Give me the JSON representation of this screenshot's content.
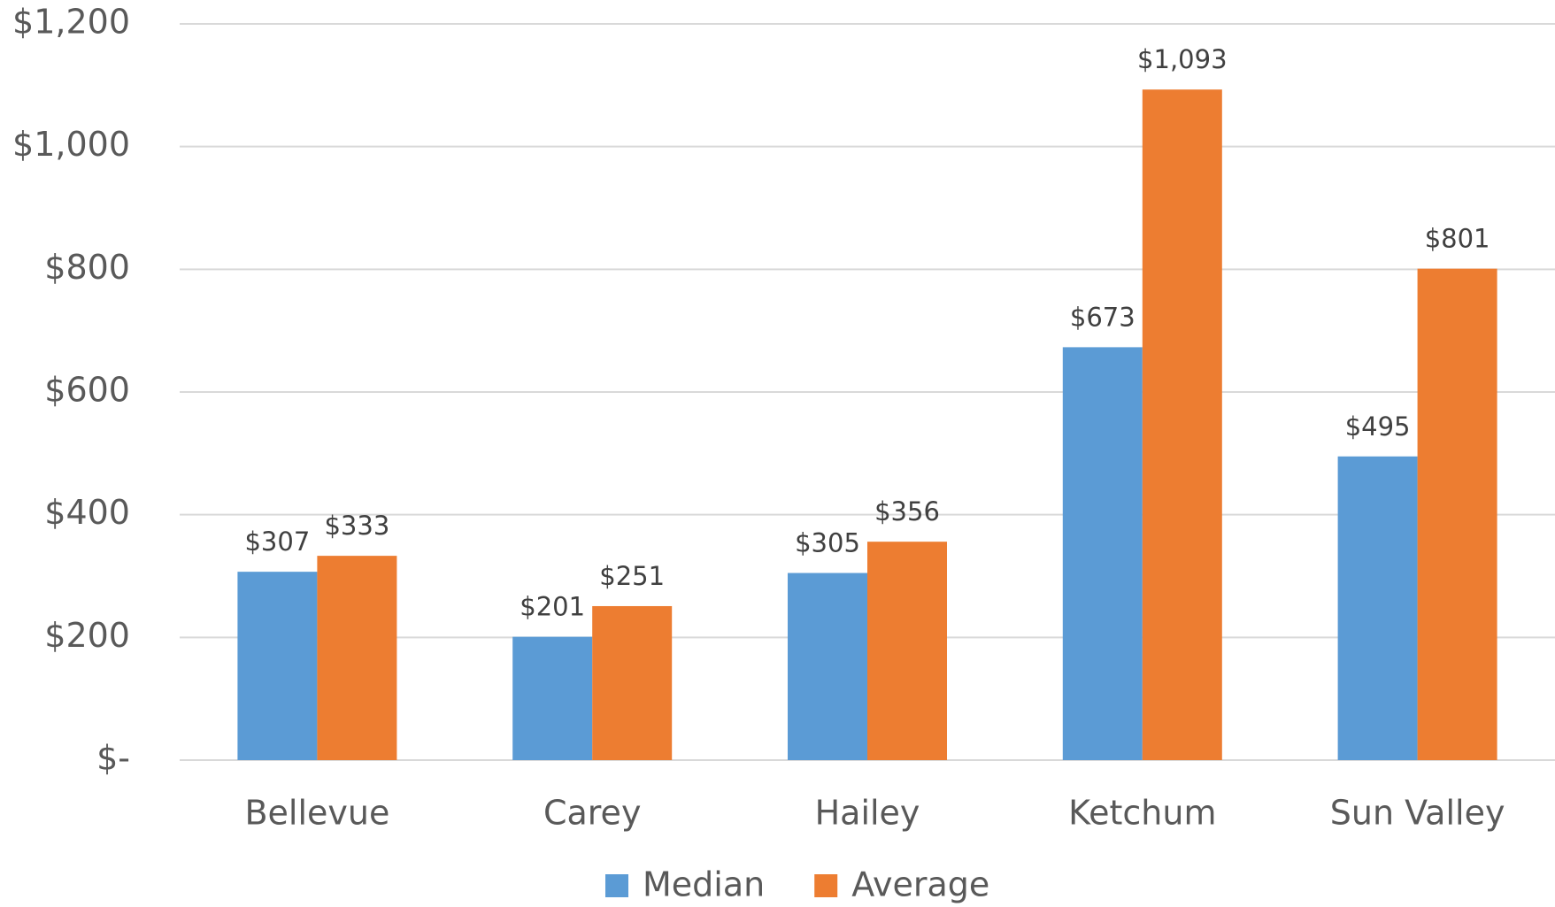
{
  "chart_data": {
    "type": "bar",
    "categories": [
      "Bellevue",
      "Carey",
      "Hailey",
      "Ketchum",
      "Sun Valley"
    ],
    "series": [
      {
        "name": "Median",
        "color": "#5b9bd5",
        "values": [
          307,
          201,
          305,
          673,
          495
        ],
        "value_labels": [
          "$307",
          "$201",
          "$305",
          "$673",
          "$495"
        ]
      },
      {
        "name": "Average",
        "color": "#ed7d31",
        "values": [
          333,
          251,
          356,
          1093,
          801
        ],
        "value_labels": [
          "$333",
          "$251",
          "$356",
          "$1,093",
          "$801"
        ]
      }
    ],
    "ylim": [
      0,
      1200
    ],
    "yticks": [
      {
        "value": 0,
        "label": "$-"
      },
      {
        "value": 200,
        "label": "$200"
      },
      {
        "value": 400,
        "label": "$400"
      },
      {
        "value": 600,
        "label": "$600"
      },
      {
        "value": 800,
        "label": "$800"
      },
      {
        "value": 1000,
        "label": "$1,000"
      },
      {
        "value": 1200,
        "label": "$1,200"
      }
    ],
    "grid": true,
    "legend": "bottom"
  }
}
